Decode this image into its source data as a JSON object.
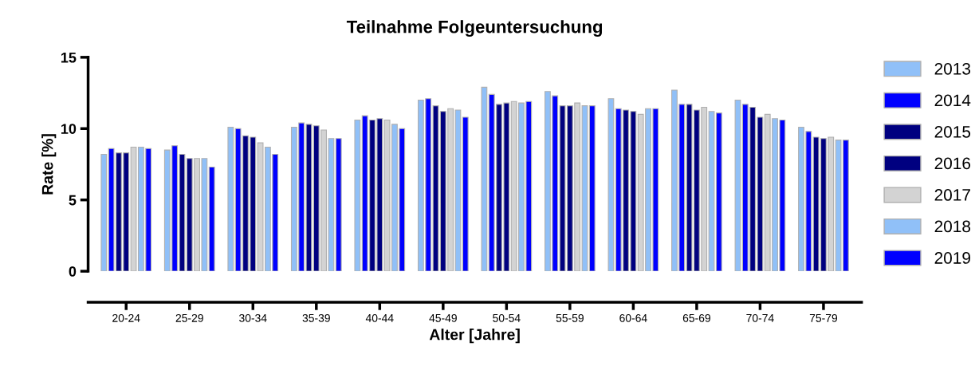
{
  "chart_data": {
    "type": "bar",
    "title": "Teilnahme Folgeuntersuchung",
    "xlabel": "Alter [Jahre]",
    "ylabel": "Rate [%]",
    "categories": [
      "20-24",
      "25-29",
      "30-34",
      "35-39",
      "40-44",
      "45-49",
      "50-54",
      "55-59",
      "60-64",
      "65-69",
      "70-74",
      "75-79"
    ],
    "series": [
      {
        "name": "2013",
        "color": "#90c0f8",
        "values": [
          8.2,
          8.5,
          10.1,
          10.1,
          10.6,
          12.0,
          12.9,
          12.6,
          12.1,
          12.7,
          12.0,
          10.1
        ]
      },
      {
        "name": "2014",
        "color": "#0000ff",
        "values": [
          8.6,
          8.8,
          10.0,
          10.4,
          10.9,
          12.1,
          12.4,
          12.3,
          11.4,
          11.7,
          11.7,
          9.8
        ]
      },
      {
        "name": "2015",
        "color": "#000080",
        "values": [
          8.3,
          8.2,
          9.5,
          10.3,
          10.6,
          11.6,
          11.7,
          11.6,
          11.3,
          11.7,
          11.5,
          9.4
        ]
      },
      {
        "name": "2016",
        "color": "#000080",
        "values": [
          8.3,
          7.9,
          9.4,
          10.2,
          10.7,
          11.2,
          11.8,
          11.6,
          11.2,
          11.3,
          10.8,
          9.3
        ]
      },
      {
        "name": "2017",
        "color": "#d3d3d3",
        "values": [
          8.7,
          7.9,
          9.0,
          9.9,
          10.6,
          11.4,
          11.9,
          11.8,
          11.0,
          11.5,
          11.0,
          9.4
        ]
      },
      {
        "name": "2018",
        "color": "#90c0f8",
        "values": [
          8.7,
          7.9,
          8.7,
          9.3,
          10.3,
          11.3,
          11.8,
          11.6,
          11.4,
          11.2,
          10.7,
          9.2
        ]
      },
      {
        "name": "2019",
        "color": "#0000ff",
        "values": [
          8.6,
          7.3,
          8.2,
          9.3,
          10.0,
          10.8,
          11.9,
          11.6,
          11.4,
          11.1,
          10.6,
          9.2
        ]
      }
    ],
    "ylim": [
      0,
      15
    ],
    "yticks": [
      0,
      5,
      10,
      15
    ],
    "grid": false,
    "legend": "right"
  }
}
